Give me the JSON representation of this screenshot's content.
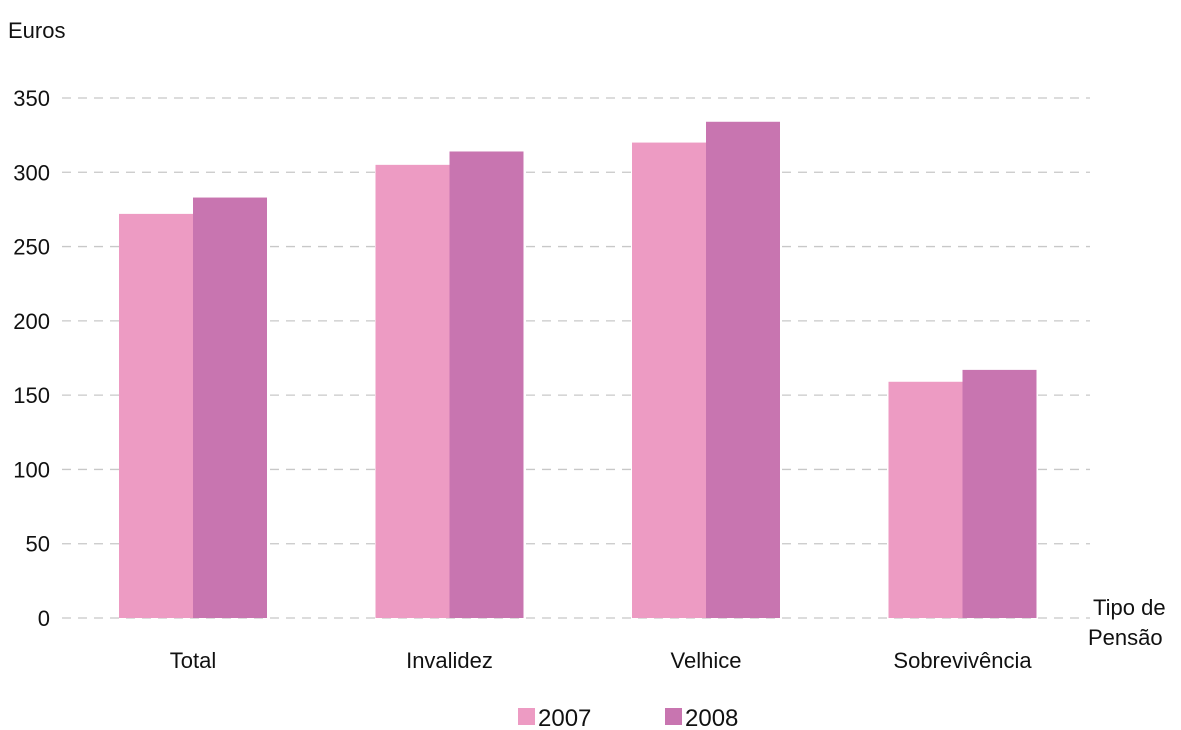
{
  "chart_data": {
    "type": "bar",
    "ylabel": "Euros",
    "xlabel_lines": [
      "Tipo de",
      "Pensão"
    ],
    "categories": [
      "Total",
      "Invalidez",
      "Velhice",
      "Sobrevivência"
    ],
    "series": [
      {
        "name": "2007",
        "values": [
          272,
          305,
          320,
          159
        ],
        "color": "#ed9bc3"
      },
      {
        "name": "2008",
        "values": [
          283,
          314,
          334,
          167
        ],
        "color": "#c875b0"
      }
    ],
    "ylim": [
      0,
      350
    ],
    "yticks": [
      0,
      50,
      100,
      150,
      200,
      250,
      300,
      350
    ],
    "grid": true,
    "legend_position": "bottom"
  }
}
